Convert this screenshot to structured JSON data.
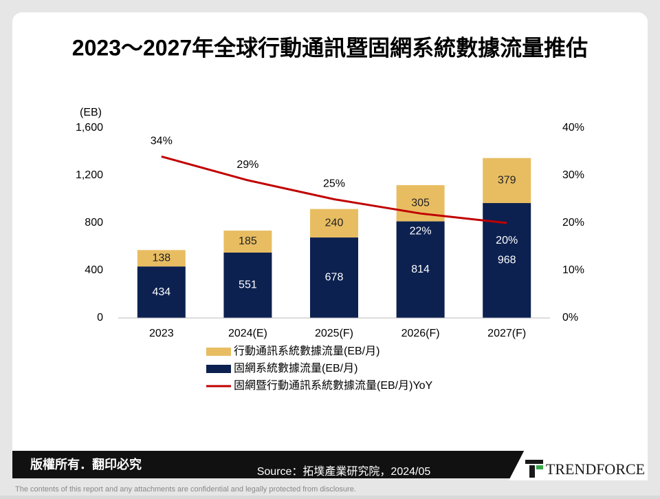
{
  "header": {
    "title": "2023～2027年全球行動通訊暨固網系統數據流量推估"
  },
  "chart_data": {
    "type": "bar",
    "stacked": true,
    "y_unit_label": "(EB)",
    "categories": [
      "2023",
      "2024(E)",
      "2025(F)",
      "2026(F)",
      "2027(F)"
    ],
    "series": [
      {
        "name": "行動通訊系統數據流量(EB/月)",
        "color": "#e8bd62",
        "values": [
          138,
          185,
          240,
          305,
          379
        ]
      },
      {
        "name": "固網系統數據流量(EB/月)",
        "color": "#0c2150",
        "values": [
          434,
          551,
          678,
          814,
          968
        ]
      },
      {
        "name": "固網暨行動通訊系統數據流量(EB/月)YoY",
        "type": "line",
        "axis": "y2",
        "color": "#c00000",
        "values": [
          34,
          29,
          25,
          22,
          20
        ],
        "value_labels": [
          "34%",
          "29%",
          "25%",
          "22%",
          "20%"
        ]
      }
    ],
    "ylim": [
      0,
      1600
    ],
    "yticks": [
      0,
      400,
      800,
      {
        "value": 1200,
        "label": "1,200"
      },
      {
        "value": 1600,
        "label": "1,600"
      }
    ],
    "y2lim": [
      0,
      40
    ],
    "y2ticks": [
      {
        "value": 0,
        "label": "0%"
      },
      {
        "value": 10,
        "label": "10%"
      },
      {
        "value": 20,
        "label": "20%"
      },
      {
        "value": 30,
        "label": "30%"
      },
      {
        "value": 40,
        "label": "40%"
      }
    ]
  },
  "footer": {
    "copyright": "版權所有．翻印必究",
    "source": "Source：拓墣產業研究院，2024/05",
    "logo": "TRENDFORCE",
    "disclaimer": "The contents of this report and any attachments are confidential and legally protected from disclosure."
  }
}
